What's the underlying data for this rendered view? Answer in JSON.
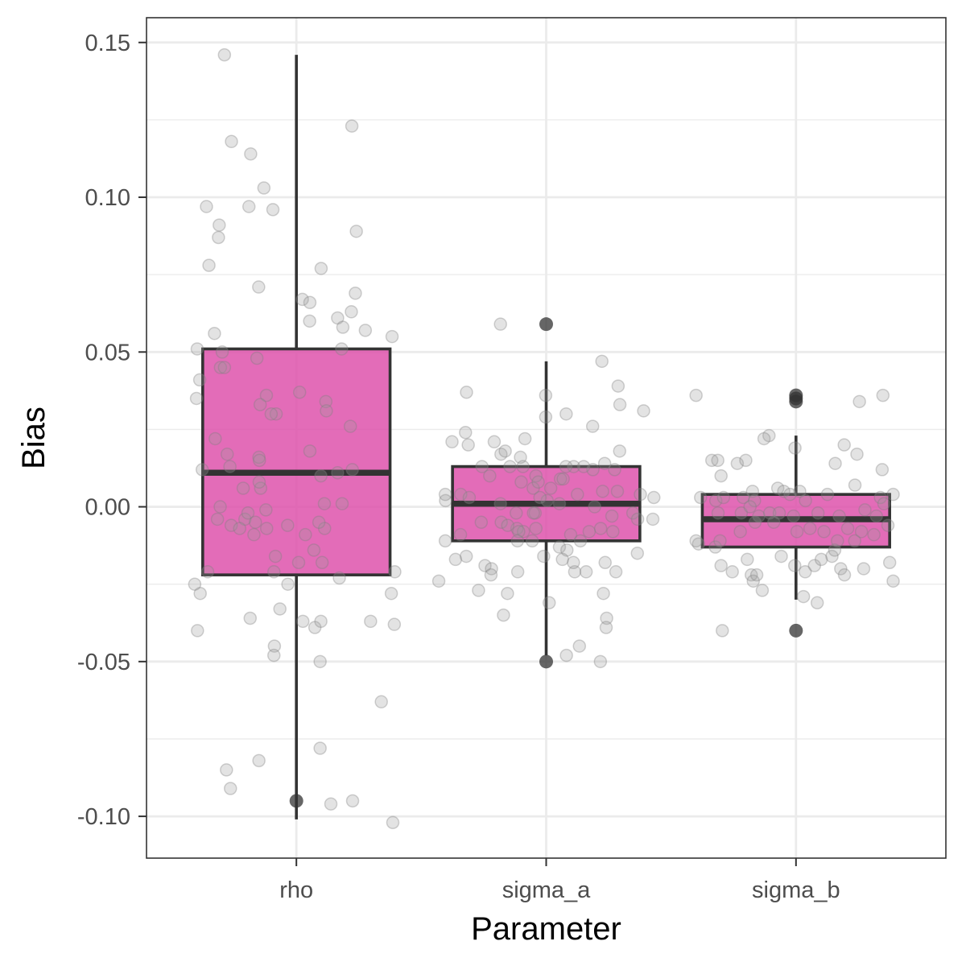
{
  "chart_data": {
    "type": "boxplot",
    "xlabel": "Parameter",
    "ylabel": "Bias",
    "categories": [
      "rho",
      "sigma_a",
      "sigma_b"
    ],
    "ylim": [
      -0.1135,
      0.158
    ],
    "y_ticks": [
      -0.1,
      -0.05,
      0.0,
      0.05,
      0.1,
      0.15
    ],
    "y_tick_labels": [
      "-0.10",
      "-0.05",
      "0.00",
      "0.05",
      "0.10",
      "0.15"
    ],
    "grid": true,
    "colors": {
      "box_fill": "#dd4ca8",
      "box_stroke": "#333333",
      "jitter": "#999999",
      "outlier": "#333333",
      "grid": "#ebebeb",
      "panel_border": "#333333"
    },
    "boxes": [
      {
        "category": "rho",
        "lower_whisker": -0.101,
        "q1": -0.022,
        "median": 0.011,
        "q3": 0.051,
        "upper_whisker": 0.146,
        "outliers": [
          -0.095
        ]
      },
      {
        "category": "sigma_a",
        "lower_whisker": -0.048,
        "q1": -0.011,
        "median": 0.001,
        "q3": 0.013,
        "upper_whisker": 0.047,
        "outliers": [
          0.059,
          -0.05
        ]
      },
      {
        "category": "sigma_b",
        "lower_whisker": -0.03,
        "q1": -0.013,
        "median": -0.004,
        "q3": 0.004,
        "upper_whisker": 0.023,
        "outliers": [
          0.036,
          0.035,
          0.034,
          -0.04
        ]
      }
    ],
    "jitter_points": [
      {
        "category": "rho",
        "points": [
          [
            -0.288,
            0.146
          ],
          [
            -0.26,
            0.118
          ],
          [
            -0.183,
            0.114
          ],
          [
            0.222,
            0.123
          ],
          [
            -0.19,
            0.097
          ],
          [
            -0.36,
            0.097
          ],
          [
            -0.309,
            0.091
          ],
          [
            -0.312,
            0.087
          ],
          [
            -0.13,
            0.103
          ],
          [
            -0.094,
            0.096
          ],
          [
            0.24,
            0.089
          ],
          [
            -0.35,
            0.078
          ],
          [
            0.099,
            0.077
          ],
          [
            -0.151,
            0.071
          ],
          [
            0.236,
            0.069
          ],
          [
            0.024,
            0.067
          ],
          [
            0.054,
            0.066
          ],
          [
            0.22,
            0.063
          ],
          [
            0.165,
            0.061
          ],
          [
            0.186,
            0.058
          ],
          [
            0.276,
            0.057
          ],
          [
            0.383,
            0.055
          ],
          [
            0.053,
            0.06
          ],
          [
            -0.328,
            0.056
          ],
          [
            -0.397,
            0.051
          ],
          [
            0.181,
            0.051
          ],
          [
            -0.387,
            0.041
          ],
          [
            -0.158,
            0.048
          ],
          [
            -0.304,
            0.045
          ],
          [
            -0.288,
            0.045
          ],
          [
            -0.4,
            0.035
          ],
          [
            0.013,
            0.037
          ],
          [
            -0.297,
            0.05
          ],
          [
            -0.12,
            0.036
          ],
          [
            -0.145,
            0.033
          ],
          [
            0.118,
            0.034
          ],
          [
            0.12,
            0.031
          ],
          [
            -0.081,
            0.03
          ],
          [
            -0.101,
            0.03
          ],
          [
            -0.325,
            0.022
          ],
          [
            0.216,
            0.026
          ],
          [
            -0.377,
            0.012
          ],
          [
            -0.277,
            0.017
          ],
          [
            -0.15,
            0.016
          ],
          [
            -0.148,
            0.015
          ],
          [
            -0.266,
            0.013
          ],
          [
            0.054,
            0.018
          ],
          [
            0.098,
            0.01
          ],
          [
            0.165,
            0.011
          ],
          [
            0.224,
            0.012
          ],
          [
            -0.143,
            0.006
          ],
          [
            -0.149,
            0.008
          ],
          [
            -0.213,
            0.006
          ],
          [
            -0.305,
            0
          ],
          [
            0.183,
            0.001
          ],
          [
            -0.122,
            -0.001
          ],
          [
            0.112,
            0.001
          ],
          [
            0.113,
            -0.007
          ],
          [
            0.009,
            -0.018
          ],
          [
            -0.084,
            -0.016
          ],
          [
            -0.206,
            -0.004
          ],
          [
            -0.194,
            -0.002
          ],
          [
            -0.164,
            -0.005
          ],
          [
            -0.035,
            -0.006
          ],
          [
            -0.261,
            -0.006
          ],
          [
            -0.316,
            -0.004
          ],
          [
            -0.17,
            -0.009
          ],
          [
            -0.119,
            -0.007
          ],
          [
            -0.227,
            -0.007
          ],
          [
            0.036,
            -0.009
          ],
          [
            0.09,
            -0.005
          ],
          [
            -0.09,
            -0.021
          ],
          [
            -0.355,
            -0.021
          ],
          [
            -0.385,
            -0.028
          ],
          [
            -0.407,
            -0.025
          ],
          [
            -0.034,
            -0.025
          ],
          [
            0.172,
            -0.023
          ],
          [
            0.394,
            -0.021
          ],
          [
            0.38,
            -0.028
          ],
          [
            0.103,
            -0.018
          ],
          [
            0.07,
            -0.014
          ],
          [
            -0.185,
            -0.036
          ],
          [
            -0.066,
            -0.033
          ],
          [
            0.026,
            -0.037
          ],
          [
            0.297,
            -0.037
          ],
          [
            0.392,
            -0.038
          ],
          [
            -0.396,
            -0.04
          ],
          [
            0.074,
            -0.039
          ],
          [
            0.098,
            -0.037
          ],
          [
            0.095,
            -0.05
          ],
          [
            -0.088,
            -0.045
          ],
          [
            -0.09,
            -0.048
          ],
          [
            0.34,
            -0.063
          ],
          [
            -0.28,
            -0.085
          ],
          [
            -0.15,
            -0.082
          ],
          [
            0.095,
            -0.078
          ],
          [
            -0.264,
            -0.091
          ],
          [
            0.138,
            -0.096
          ],
          [
            0.225,
            -0.095
          ],
          [
            0.386,
            -0.102
          ]
        ]
      },
      {
        "category": "sigma_a",
        "points": [
          [
            -0.183,
            0.059
          ],
          [
            0.223,
            0.047
          ],
          [
            0.288,
            0.039
          ],
          [
            -0.319,
            0.037
          ],
          [
            -0.002,
            0.036
          ],
          [
            0.295,
            0.033
          ],
          [
            0.39,
            0.031
          ],
          [
            0.08,
            0.03
          ],
          [
            0.186,
            0.026
          ],
          [
            -0.002,
            0.029
          ],
          [
            -0.323,
            0.024
          ],
          [
            -0.312,
            0.02
          ],
          [
            -0.377,
            0.021
          ],
          [
            -0.208,
            0.021
          ],
          [
            -0.085,
            0.022
          ],
          [
            -0.103,
            0.016
          ],
          [
            -0.181,
            0.017
          ],
          [
            -0.164,
            0.018
          ],
          [
            -0.257,
            0.013
          ],
          [
            -0.145,
            0.013
          ],
          [
            -0.226,
            0.01
          ],
          [
            0.294,
            0.018
          ],
          [
            0.234,
            0.014
          ],
          [
            0.274,
            0.012
          ],
          [
            0.285,
            0.005
          ],
          [
            0.187,
            0.012
          ],
          [
            0.11,
            0.013
          ],
          [
            0.079,
            0.013
          ],
          [
            -0.093,
            0.013
          ],
          [
            -0.041,
            0.01
          ],
          [
            -0.1,
            0.008
          ],
          [
            -0.052,
            0.006
          ],
          [
            -0.032,
            0.008
          ],
          [
            0.057,
            0.009
          ],
          [
            0.068,
            0.009
          ],
          [
            0.15,
            0.013
          ],
          [
            0.226,
            0.005
          ],
          [
            0.377,
            0.004
          ],
          [
            0.431,
            0.003
          ],
          [
            -0.342,
            0.004
          ],
          [
            -0.403,
            0.002
          ],
          [
            -0.404,
            0.004
          ],
          [
            -0.308,
            0.003
          ],
          [
            -0.183,
            0.001
          ],
          [
            0.018,
            0.006
          ],
          [
            0.004,
            0.002
          ],
          [
            0.125,
            0.004
          ],
          [
            0.053,
            0.001
          ],
          [
            -0.025,
            0.003
          ],
          [
            -0.044,
            -0.002
          ],
          [
            -0.12,
            -0.002
          ],
          [
            -0.117,
            -0.007
          ],
          [
            -0.091,
            -0.008
          ],
          [
            -0.051,
            -0.002
          ],
          [
            0.194,
            0
          ],
          [
            0.263,
            -0.003
          ],
          [
            0.347,
            -0.002
          ],
          [
            0.427,
            -0.004
          ],
          [
            -0.26,
            -0.005
          ],
          [
            -0.18,
            -0.005
          ],
          [
            -0.154,
            -0.006
          ],
          [
            -0.11,
            -0.008
          ],
          [
            -0.056,
            -0.011
          ],
          [
            -0.041,
            -0.007
          ],
          [
            0.053,
            -0.013
          ],
          [
            0.083,
            -0.014
          ],
          [
            0.098,
            -0.009
          ],
          [
            0.172,
            -0.008
          ],
          [
            0.218,
            -0.007
          ],
          [
            0.267,
            -0.008
          ],
          [
            0.366,
            -0.004
          ],
          [
            -0.343,
            -0.009
          ],
          [
            -0.404,
            -0.011
          ],
          [
            -0.32,
            -0.016
          ],
          [
            -0.245,
            -0.019
          ],
          [
            -0.219,
            -0.02
          ],
          [
            -0.221,
            -0.022
          ],
          [
            -0.114,
            -0.021
          ],
          [
            -0.01,
            -0.016
          ],
          [
            0.065,
            -0.017
          ],
          [
            0.137,
            -0.011
          ],
          [
            0.114,
            -0.021
          ],
          [
            0.16,
            -0.021
          ],
          [
            0.109,
            -0.018
          ],
          [
            0.236,
            -0.018
          ],
          [
            0.279,
            -0.021
          ],
          [
            0.365,
            -0.015
          ],
          [
            -0.43,
            -0.024
          ],
          [
            -0.363,
            -0.017
          ],
          [
            -0.271,
            -0.027
          ],
          [
            -0.155,
            -0.028
          ],
          [
            -0.171,
            -0.035
          ],
          [
            0.012,
            -0.031
          ],
          [
            0.229,
            -0.028
          ],
          [
            0.242,
            -0.036
          ],
          [
            0.24,
            -0.039
          ],
          [
            0.133,
            -0.045
          ],
          [
            0.081,
            -0.048
          ],
          [
            0.217,
            -0.05
          ],
          [
            -0.115,
            -0.011
          ]
        ]
      },
      {
        "category": "sigma_b",
        "points": [
          [
            -0.4,
            0.036
          ],
          [
            0.348,
            0.036
          ],
          [
            0.254,
            0.034
          ],
          [
            -0.108,
            0.023
          ],
          [
            -0.128,
            0.022
          ],
          [
            -0.004,
            0.019
          ],
          [
            0.193,
            0.02
          ],
          [
            -0.337,
            0.015
          ],
          [
            -0.313,
            0.015
          ],
          [
            -0.235,
            0.014
          ],
          [
            -0.201,
            0.015
          ],
          [
            -0.3,
            0.01
          ],
          [
            0.157,
            0.014
          ],
          [
            0.244,
            0.017
          ],
          [
            0.345,
            0.012
          ],
          [
            -0.382,
            0.003
          ],
          [
            -0.321,
            0.002
          ],
          [
            -0.29,
            0.003
          ],
          [
            -0.211,
            0.003
          ],
          [
            -0.174,
            0.005
          ],
          [
            -0.166,
            0.002
          ],
          [
            -0.073,
            0.006
          ],
          [
            -0.049,
            0.005
          ],
          [
            -0.024,
            0.004
          ],
          [
            0.015,
            0.005
          ],
          [
            0.038,
            0.002
          ],
          [
            0.126,
            0.004
          ],
          [
            0.236,
            0.007
          ],
          [
            0.338,
            0.003
          ],
          [
            0.389,
            0.004
          ],
          [
            -0.312,
            -0.002
          ],
          [
            -0.219,
            -0.002
          ],
          [
            -0.184,
            0
          ],
          [
            -0.149,
            -0.003
          ],
          [
            -0.105,
            -0.002
          ],
          [
            -0.067,
            -0.002
          ],
          [
            -0.01,
            -0.003
          ],
          [
            0.088,
            -0.002
          ],
          [
            0.173,
            -0.003
          ],
          [
            0.276,
            -0.001
          ],
          [
            0.322,
            -0.003
          ],
          [
            0.352,
            0.001
          ],
          [
            -0.39,
            -0.012
          ],
          [
            -0.323,
            -0.013
          ],
          [
            -0.304,
            -0.011
          ],
          [
            -0.223,
            -0.008
          ],
          [
            -0.164,
            -0.005
          ],
          [
            -0.089,
            -0.005
          ],
          [
            0.004,
            -0.008
          ],
          [
            0.056,
            -0.007
          ],
          [
            0.112,
            -0.008
          ],
          [
            0.166,
            -0.011
          ],
          [
            0.207,
            -0.007
          ],
          [
            0.235,
            -0.011
          ],
          [
            0.262,
            -0.008
          ],
          [
            0.312,
            -0.009
          ],
          [
            0.368,
            -0.006
          ],
          [
            -0.3,
            -0.019
          ],
          [
            -0.255,
            -0.021
          ],
          [
            -0.195,
            -0.017
          ],
          [
            -0.179,
            -0.022
          ],
          [
            -0.171,
            -0.024
          ],
          [
            -0.135,
            -0.027
          ],
          [
            -0.059,
            -0.016
          ],
          [
            -0.005,
            -0.019
          ],
          [
            0.037,
            -0.021
          ],
          [
            0.074,
            -0.019
          ],
          [
            0.101,
            -0.017
          ],
          [
            0.144,
            -0.016
          ],
          [
            0.179,
            -0.02
          ],
          [
            0.194,
            -0.022
          ],
          [
            0.271,
            -0.02
          ],
          [
            0.375,
            -0.018
          ],
          [
            0.389,
            -0.024
          ],
          [
            -0.157,
            -0.022
          ],
          [
            0.085,
            -0.031
          ],
          [
            -0.295,
            -0.04
          ],
          [
            -0.4,
            -0.011
          ],
          [
            0.03,
            -0.029
          ],
          [
            0.155,
            -0.014
          ]
        ]
      }
    ]
  }
}
